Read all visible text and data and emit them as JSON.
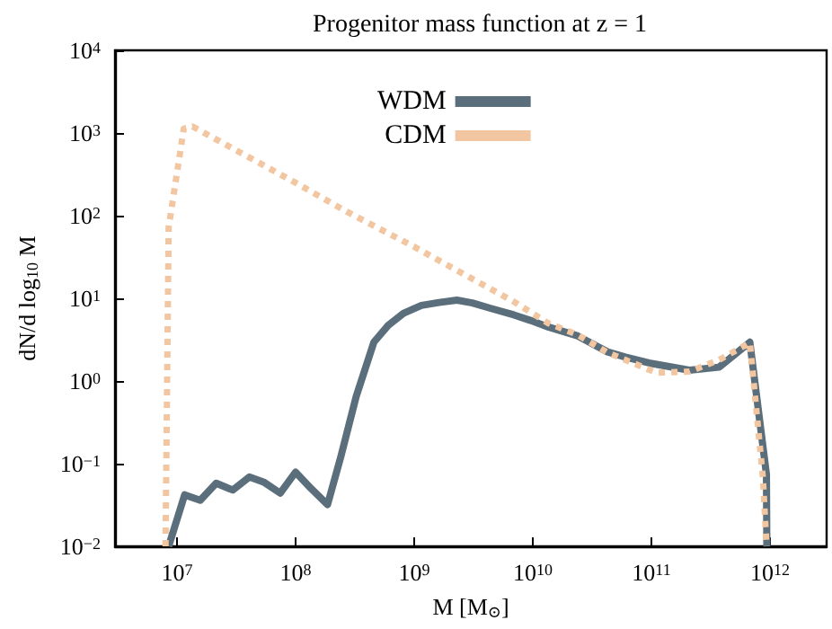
{
  "chart_data": {
    "type": "line",
    "title": "Progenitor mass function at z = 1",
    "xlabel": "M [M$_{⊙}$]",
    "ylabel": "dN/d log$_{10}$ M",
    "log": "xy",
    "grid": false,
    "legend": "top",
    "marker": "none",
    "xlim": [
      3000000,
      3000000000000
    ],
    "ylim": [
      0.01,
      10000
    ],
    "xticks": [
      {
        "value": 10000000,
        "label": "10$^{7}$"
      },
      {
        "value": 100000000,
        "label": "10$^{8}$"
      },
      {
        "value": 1000000000,
        "label": "10$^{9}$"
      },
      {
        "value": 10000000000,
        "label": "10$^{10}$"
      },
      {
        "value": 100000000000,
        "label": "10$^{11}$"
      },
      {
        "value": 1000000000000,
        "label": "10$^{12}$"
      }
    ],
    "yticks": [
      {
        "value": 0.01,
        "label": "10$^{−2}$"
      },
      {
        "value": 0.1,
        "label": "10$^{−1}$"
      },
      {
        "value": 1,
        "label": "10$^{0}$"
      },
      {
        "value": 10,
        "label": "10$^{1}$"
      },
      {
        "value": 100,
        "label": "10$^{2}$"
      },
      {
        "value": 1000,
        "label": "10$^{3}$"
      },
      {
        "value": 10000,
        "label": "10$^{4}$"
      }
    ],
    "series": [
      {
        "name": "WDM",
        "color": "#5b6e7b",
        "line_style": "solid",
        "x": [
          8500000,
          11600000,
          15700000,
          21400000,
          29500000,
          40700000,
          53700000,
          74100000,
          100000000,
          135000000,
          186000000,
          240000000,
          324000000,
          457000000,
          603000000,
          813000000,
          1150000000,
          1620000000,
          2290000000,
          3090000000,
          4370000000,
          6920000000,
          9550000000,
          13500000000,
          24000000000,
          42700000000,
          60300000000,
          95500000000,
          209000000000,
          372000000000,
          676000000000,
          933000000000,
          940000000000
        ],
        "values": [
          0.01,
          0.042,
          0.036,
          0.058,
          0.048,
          0.069,
          0.06,
          0.044,
          0.079,
          0.05,
          0.032,
          0.12,
          0.65,
          2.95,
          4.7,
          6.6,
          8.2,
          8.9,
          9.5,
          8.8,
          7.6,
          6.3,
          5.4,
          4.5,
          3.5,
          2.25,
          1.95,
          1.65,
          1.35,
          1.47,
          2.95,
          0.074,
          0.01
        ]
      },
      {
        "name": "CDM",
        "color": "#f2c6a0",
        "line_style": "dotted",
        "x": [
          8000000,
          8500000,
          11400000,
          13500000,
          100000000,
          269000000,
          1000000000,
          6920000000,
          13500000000,
          24000000000,
          42700000000,
          60300000000,
          110000000000,
          209000000000,
          372000000000,
          676000000000,
          871000000000,
          935000000000
        ],
        "values": [
          0.01,
          72,
          1130,
          1200,
          250,
          112,
          42,
          9.1,
          5,
          3.6,
          2.2,
          1.8,
          1.26,
          1.3,
          1.8,
          2.9,
          0.068,
          0.01
        ]
      }
    ]
  }
}
